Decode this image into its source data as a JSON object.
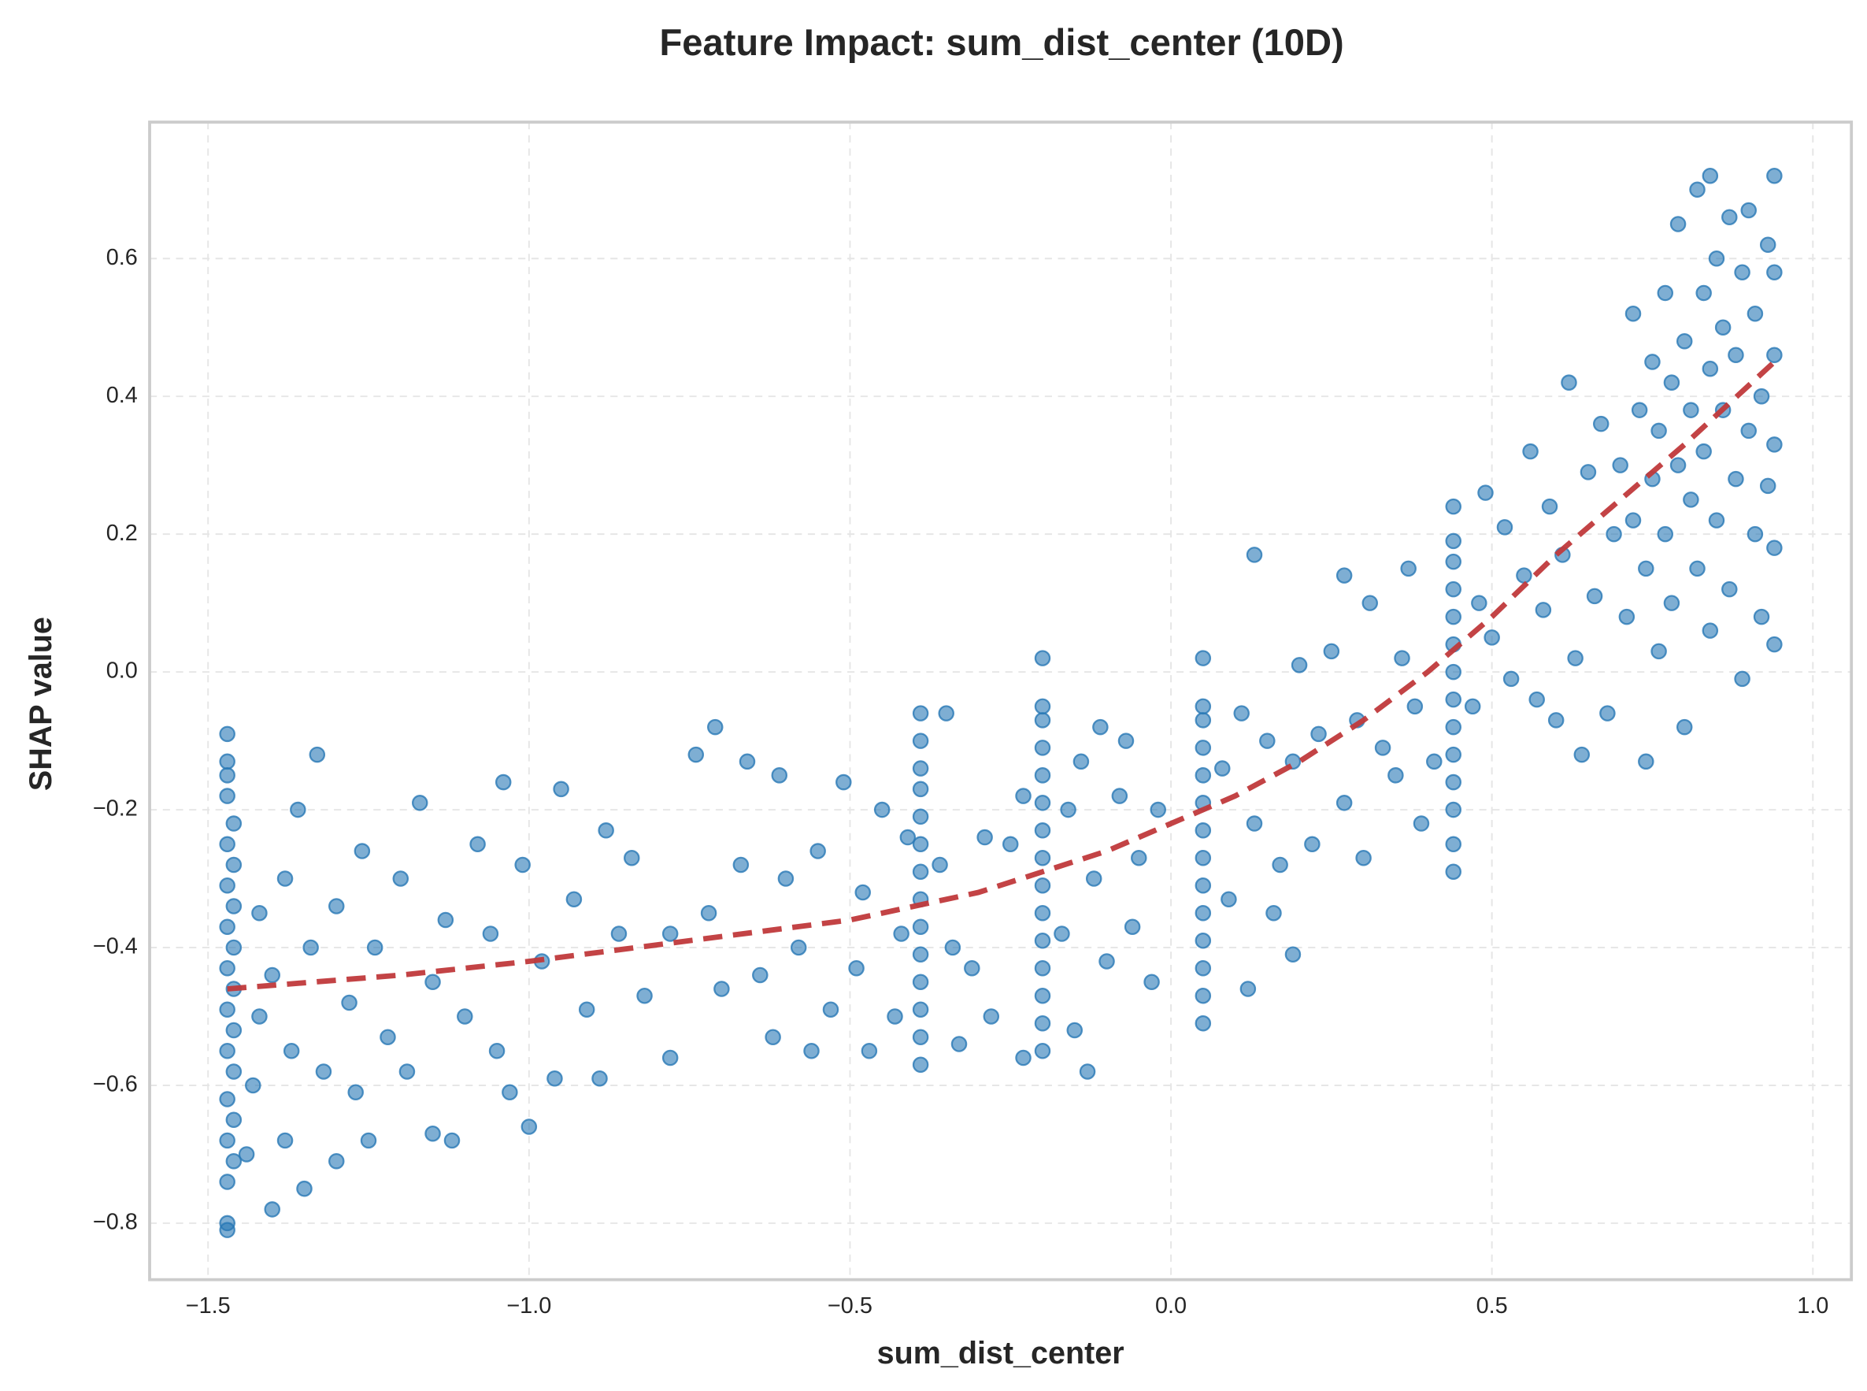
{
  "chart_data": {
    "type": "scatter",
    "title": "Feature Impact: sum_dist_center (10D)",
    "x_label": "sum_dist_center",
    "y_label": "SHAP value",
    "color": "#2878b5",
    "grid": true,
    "xlim": [
      -1.591,
      1.06
    ],
    "ylim": [
      -0.882,
      0.798
    ],
    "xticks": [
      {
        "value": -1.5,
        "label": "−1.5"
      },
      {
        "value": -1.0,
        "label": "−1.0"
      },
      {
        "value": -0.5,
        "label": "−0.5"
      },
      {
        "value": 0.0,
        "label": "0.0"
      },
      0.5,
      {
        "value": 1.0,
        "label": "1.0"
      }
    ],
    "yticks": [
      {
        "value": -0.8,
        "label": "−0.8"
      },
      {
        "value": -0.6,
        "label": "−0.6"
      },
      {
        "value": -0.4,
        "label": "−0.4"
      },
      {
        "value": -0.2,
        "label": "−0.2"
      },
      {
        "value": 0.0,
        "label": "0.0"
      },
      0.2,
      0.4,
      0.6
    ],
    "x": [
      -1.47,
      -1.47,
      -1.47,
      -1.46,
      -1.47,
      -1.46,
      -1.47,
      -1.46,
      -1.47,
      -1.46,
      -1.47,
      -1.46,
      -1.47,
      -1.46,
      -1.47,
      -1.46,
      -1.47,
      -1.46,
      -1.47,
      -1.46,
      -1.47,
      -1.47,
      -1.47,
      -1.47,
      -1.44,
      -1.43,
      -1.42,
      -1.42,
      -1.4,
      -1.4,
      -1.38,
      -1.38,
      -1.37,
      -1.36,
      -1.35,
      -1.34,
      -1.33,
      -1.32,
      -1.3,
      -1.3,
      -1.28,
      -1.27,
      -1.26,
      -1.25,
      -1.24,
      -1.22,
      -1.2,
      -1.19,
      -1.17,
      -1.15,
      -1.15,
      -1.13,
      -1.12,
      -1.1,
      -1.08,
      -1.06,
      -1.05,
      -1.04,
      -1.03,
      -1.01,
      -1.0,
      -0.98,
      -0.96,
      -0.95,
      -0.93,
      -0.91,
      -0.89,
      -0.88,
      -0.86,
      -0.84,
      -0.82,
      -0.78,
      -0.78,
      -0.74,
      -0.72,
      -0.71,
      -0.7,
      -0.67,
      -0.66,
      -0.64,
      -0.62,
      -0.61,
      -0.6,
      -0.58,
      -0.56,
      -0.55,
      -0.53,
      -0.51,
      -0.49,
      -0.48,
      -0.47,
      -0.45,
      -0.43,
      -0.42,
      -0.41,
      -0.39,
      -0.39,
      -0.39,
      -0.39,
      -0.39,
      -0.39,
      -0.39,
      -0.39,
      -0.39,
      -0.39,
      -0.39,
      -0.39,
      -0.39,
      -0.39,
      -0.36,
      -0.35,
      -0.34,
      -0.33,
      -0.31,
      -0.29,
      -0.28,
      -0.25,
      -0.23,
      -0.23,
      -0.2,
      -0.2,
      -0.2,
      -0.2,
      -0.2,
      -0.2,
      -0.2,
      -0.2,
      -0.2,
      -0.2,
      -0.2,
      -0.2,
      -0.2,
      -0.2,
      -0.2,
      -0.17,
      -0.16,
      -0.15,
      -0.14,
      -0.13,
      -0.12,
      -0.11,
      -0.1,
      -0.08,
      -0.07,
      -0.06,
      -0.05,
      -0.03,
      -0.02,
      0.05,
      0.05,
      0.05,
      0.05,
      0.05,
      0.05,
      0.05,
      0.05,
      0.05,
      0.05,
      0.05,
      0.05,
      0.05,
      0.05,
      0.08,
      0.09,
      0.11,
      0.12,
      0.13,
      0.13,
      0.15,
      0.16,
      0.17,
      0.19,
      0.19,
      0.2,
      0.22,
      0.23,
      0.25,
      0.27,
      0.27,
      0.29,
      0.3,
      0.31,
      0.33,
      0.35,
      0.36,
      0.37,
      0.38,
      0.39,
      0.41,
      0.44,
      0.44,
      0.44,
      0.44,
      0.44,
      0.44,
      0.44,
      0.44,
      0.44,
      0.44,
      0.44,
      0.44,
      0.44,
      0.44,
      0.47,
      0.48,
      0.49,
      0.5,
      0.52,
      0.53,
      0.55,
      0.56,
      0.57,
      0.58,
      0.59,
      0.6,
      0.61,
      0.62,
      0.63,
      0.64,
      0.65,
      0.66,
      0.67,
      0.68,
      0.69,
      0.7,
      0.71,
      0.72,
      0.72,
      0.73,
      0.74,
      0.74,
      0.75,
      0.75,
      0.76,
      0.76,
      0.77,
      0.77,
      0.78,
      0.78,
      0.79,
      0.79,
      0.8,
      0.8,
      0.81,
      0.81,
      0.82,
      0.82,
      0.83,
      0.83,
      0.84,
      0.84,
      0.84,
      0.85,
      0.85,
      0.86,
      0.86,
      0.87,
      0.87,
      0.88,
      0.88,
      0.89,
      0.89,
      0.9,
      0.9,
      0.91,
      0.91,
      0.92,
      0.92,
      0.93,
      0.93,
      0.94,
      0.94,
      0.94,
      0.94,
      0.94,
      0.94
    ],
    "y": [
      -0.81,
      -0.8,
      -0.74,
      -0.71,
      -0.68,
      -0.65,
      -0.62,
      -0.58,
      -0.55,
      -0.52,
      -0.49,
      -0.46,
      -0.43,
      -0.4,
      -0.37,
      -0.34,
      -0.31,
      -0.28,
      -0.25,
      -0.22,
      -0.18,
      -0.15,
      -0.13,
      -0.09,
      -0.7,
      -0.6,
      -0.5,
      -0.35,
      -0.78,
      -0.44,
      -0.68,
      -0.3,
      -0.55,
      -0.2,
      -0.75,
      -0.4,
      -0.12,
      -0.58,
      -0.71,
      -0.34,
      -0.48,
      -0.61,
      -0.26,
      -0.68,
      -0.4,
      -0.53,
      -0.3,
      -0.58,
      -0.19,
      -0.45,
      -0.67,
      -0.36,
      -0.68,
      -0.5,
      -0.25,
      -0.38,
      -0.55,
      -0.16,
      -0.61,
      -0.28,
      -0.66,
      -0.42,
      -0.59,
      -0.17,
      -0.33,
      -0.49,
      -0.59,
      -0.23,
      -0.38,
      -0.27,
      -0.47,
      -0.56,
      -0.38,
      -0.12,
      -0.35,
      -0.08,
      -0.46,
      -0.28,
      -0.13,
      -0.44,
      -0.53,
      -0.15,
      -0.3,
      -0.4,
      -0.55,
      -0.26,
      -0.49,
      -0.16,
      -0.43,
      -0.32,
      -0.55,
      -0.2,
      -0.5,
      -0.38,
      -0.24,
      -0.57,
      -0.53,
      -0.49,
      -0.45,
      -0.41,
      -0.37,
      -0.33,
      -0.29,
      -0.25,
      -0.21,
      -0.17,
      -0.14,
      -0.1,
      -0.06,
      -0.28,
      -0.06,
      -0.4,
      -0.54,
      -0.43,
      -0.24,
      -0.5,
      -0.25,
      -0.56,
      -0.18,
      -0.55,
      -0.51,
      -0.47,
      -0.43,
      -0.39,
      -0.35,
      -0.31,
      -0.27,
      -0.23,
      -0.19,
      -0.15,
      -0.11,
      -0.07,
      -0.05,
      0.02,
      -0.38,
      -0.2,
      -0.52,
      -0.13,
      -0.58,
      -0.3,
      -0.08,
      -0.42,
      -0.18,
      -0.1,
      -0.37,
      -0.27,
      -0.45,
      -0.2,
      -0.51,
      -0.47,
      -0.43,
      -0.39,
      -0.35,
      -0.31,
      -0.27,
      -0.23,
      -0.19,
      -0.15,
      -0.11,
      -0.07,
      -0.05,
      0.02,
      -0.14,
      -0.33,
      -0.06,
      -0.46,
      -0.22,
      0.17,
      -0.1,
      -0.35,
      -0.28,
      -0.13,
      -0.41,
      0.01,
      -0.25,
      -0.09,
      0.03,
      -0.19,
      0.14,
      -0.07,
      -0.27,
      0.1,
      -0.11,
      -0.15,
      0.02,
      0.15,
      -0.05,
      -0.22,
      -0.13,
      -0.29,
      -0.25,
      -0.2,
      -0.16,
      -0.12,
      -0.08,
      -0.04,
      0.0,
      0.04,
      0.08,
      0.12,
      0.16,
      0.19,
      0.24,
      -0.05,
      0.1,
      0.26,
      0.05,
      0.21,
      -0.01,
      0.14,
      0.32,
      -0.04,
      0.09,
      0.24,
      -0.07,
      0.17,
      0.42,
      0.02,
      -0.12,
      0.29,
      0.11,
      0.36,
      -0.06,
      0.2,
      0.3,
      0.08,
      0.52,
      0.22,
      0.38,
      -0.13,
      0.15,
      0.45,
      0.28,
      0.03,
      0.35,
      0.55,
      0.2,
      0.42,
      0.1,
      0.3,
      0.65,
      0.48,
      -0.08,
      0.25,
      0.38,
      0.7,
      0.15,
      0.55,
      0.32,
      0.72,
      0.44,
      0.06,
      0.6,
      0.22,
      0.38,
      0.5,
      0.66,
      0.12,
      0.28,
      0.46,
      0.58,
      -0.01,
      0.35,
      0.67,
      0.2,
      0.52,
      0.4,
      0.08,
      0.62,
      0.27,
      0.72,
      0.46,
      0.18,
      0.04,
      0.33,
      0.58
    ],
    "trend": {
      "color": "#c0393b",
      "x": [
        -1.47,
        -1.2,
        -1.0,
        -0.75,
        -0.5,
        -0.3,
        -0.2,
        -0.1,
        0.0,
        0.1,
        0.2,
        0.3,
        0.4,
        0.5,
        0.6,
        0.7,
        0.8,
        0.87,
        0.94
      ],
      "y": [
        -0.46,
        -0.44,
        -0.42,
        -0.39,
        -0.36,
        -0.32,
        -0.29,
        -0.26,
        -0.22,
        -0.18,
        -0.13,
        -0.07,
        0.0,
        0.08,
        0.17,
        0.25,
        0.33,
        0.39,
        0.45
      ]
    }
  }
}
